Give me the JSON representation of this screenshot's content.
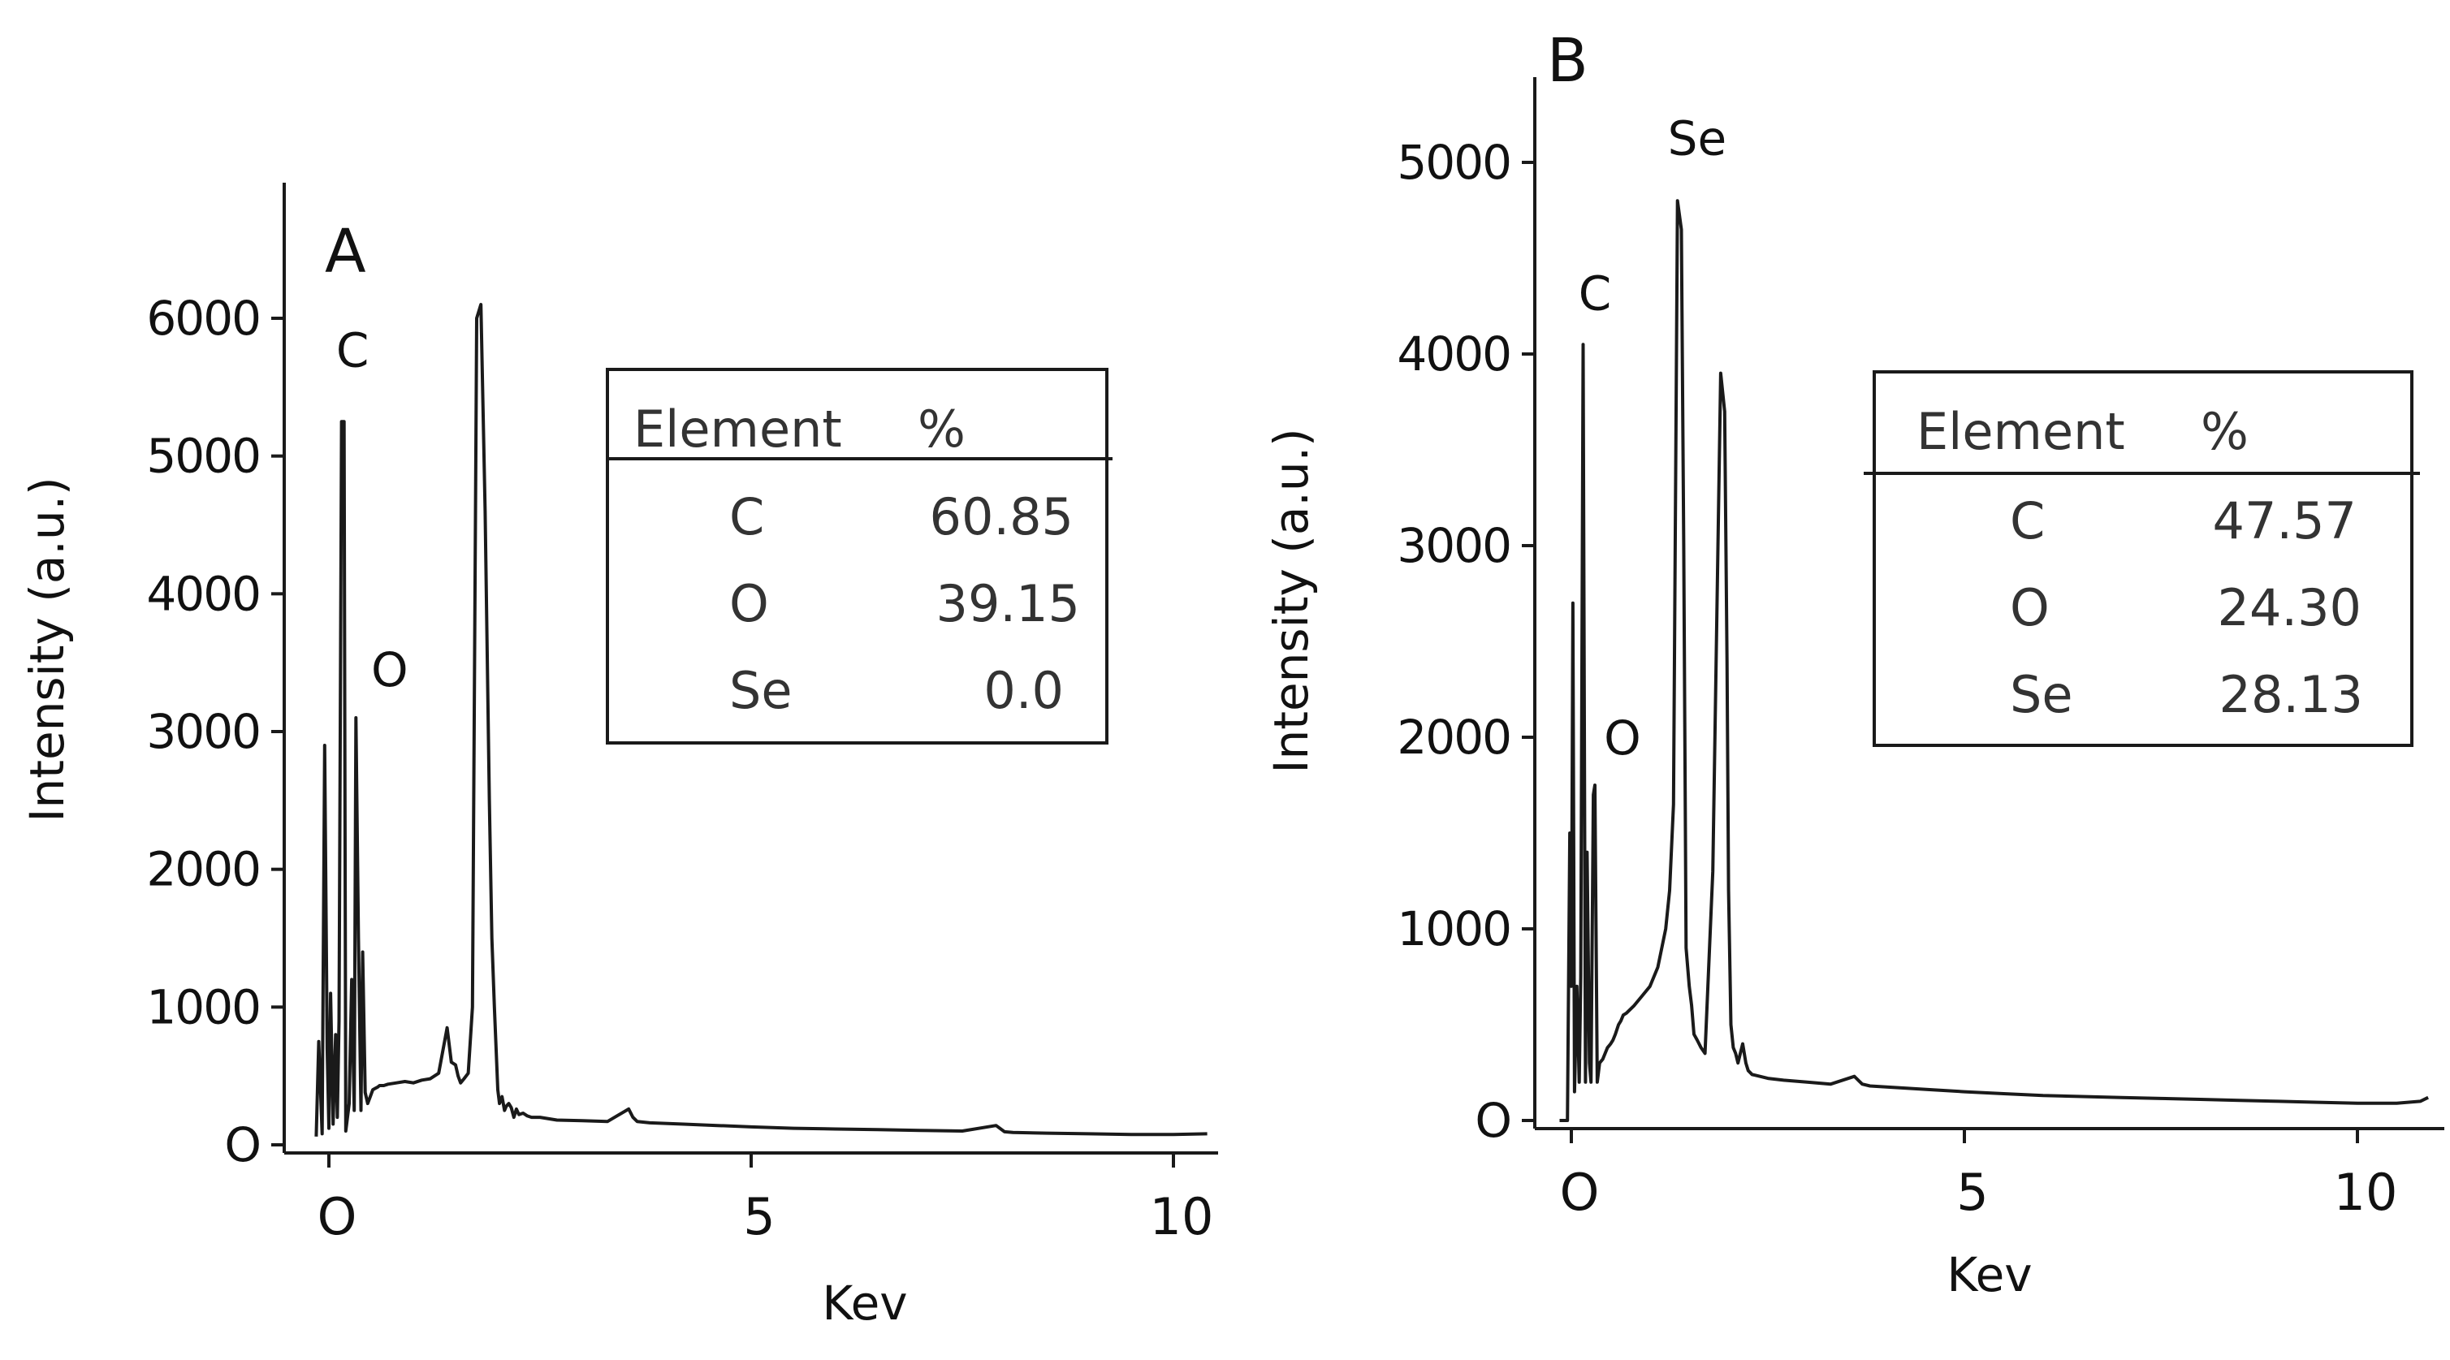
{
  "chart_data": [
    {
      "type": "line",
      "panel_label": "A",
      "xlabel": "Kev",
      "ylabel": "Intensity (a.u.)",
      "xlim": [
        -0.5,
        10.8
      ],
      "ylim": [
        0,
        6800
      ],
      "x_ticks": [
        {
          "value": 0,
          "label": "O"
        },
        {
          "value": 5,
          "label": "5"
        },
        {
          "value": 10,
          "label": "10"
        }
      ],
      "y_ticks": [
        {
          "value": 0,
          "label": "O"
        },
        {
          "value": 1000,
          "label": "1000"
        },
        {
          "value": 2000,
          "label": "2000"
        },
        {
          "value": 3000,
          "label": "3000"
        },
        {
          "value": 4000,
          "label": "4000"
        },
        {
          "value": 5000,
          "label": "5000"
        },
        {
          "value": 6000,
          "label": "6000"
        }
      ],
      "peak_labels": [
        {
          "text": "C",
          "x": 0.28,
          "y": 5650
        },
        {
          "text": "O",
          "x": 0.72,
          "y": 3330
        }
      ],
      "spectrum": {
        "x": [
          -0.15,
          -0.12,
          -0.08,
          -0.05,
          -0.02,
          0.0,
          0.02,
          0.05,
          0.08,
          0.1,
          0.12,
          0.15,
          0.18,
          0.2,
          0.24,
          0.27,
          0.3,
          0.32,
          0.35,
          0.38,
          0.4,
          0.43,
          0.46,
          0.49,
          0.52,
          0.55,
          0.58,
          0.6,
          0.65,
          0.7,
          0.8,
          0.9,
          1.0,
          1.1,
          1.2,
          1.3,
          1.4,
          1.45,
          1.5,
          1.53,
          1.56,
          1.6,
          1.65,
          1.7,
          1.75,
          1.8,
          1.85,
          1.9,
          1.93,
          1.96,
          2.0,
          2.02,
          2.05,
          2.08,
          2.1,
          2.13,
          2.16,
          2.19,
          2.22,
          2.25,
          2.3,
          2.35,
          2.4,
          2.5,
          2.7,
          3.0,
          3.3,
          3.55,
          3.6,
          3.65,
          3.8,
          4.2,
          4.6,
          5.0,
          5.5,
          6.0,
          6.5,
          7.0,
          7.5,
          7.9,
          8.0,
          8.1,
          8.5,
          9.0,
          9.5,
          10.0,
          10.4
        ],
        "y": [
          60,
          750,
          80,
          2900,
          700,
          120,
          1100,
          150,
          800,
          200,
          900,
          5250,
          5250,
          100,
          300,
          1200,
          250,
          3100,
          1500,
          250,
          1400,
          380,
          300,
          350,
          400,
          410,
          420,
          430,
          430,
          440,
          450,
          460,
          450,
          470,
          480,
          520,
          850,
          600,
          580,
          500,
          450,
          480,
          520,
          1000,
          6000,
          6100,
          4600,
          2500,
          1500,
          1000,
          400,
          300,
          350,
          250,
          280,
          300,
          270,
          200,
          260,
          220,
          230,
          210,
          200,
          200,
          180,
          175,
          170,
          260,
          200,
          170,
          160,
          150,
          140,
          130,
          120,
          115,
          110,
          105,
          100,
          140,
          95,
          90,
          85,
          80,
          75,
          75,
          80
        ]
      },
      "table": {
        "headers": [
          "Element",
          "%"
        ],
        "rows": [
          {
            "element": "C",
            "percent": "60.85"
          },
          {
            "element": "O",
            "percent": "39.15"
          },
          {
            "element": "Se",
            "percent": "0.0"
          }
        ]
      }
    },
    {
      "type": "line",
      "panel_label": "B",
      "xlabel": "Kev",
      "ylabel": "Intensity (a.u.)",
      "xlim": [
        -0.3,
        11.0
      ],
      "ylim": [
        0,
        5500
      ],
      "x_ticks": [
        {
          "value": 0,
          "label": "O"
        },
        {
          "value": 5,
          "label": "5"
        },
        {
          "value": 10,
          "label": "10"
        }
      ],
      "y_ticks": [
        {
          "value": 0,
          "label": "O"
        },
        {
          "value": 1000,
          "label": "1000"
        },
        {
          "value": 2000,
          "label": "2000"
        },
        {
          "value": 3000,
          "label": "3000"
        },
        {
          "value": 4000,
          "label": "4000"
        },
        {
          "value": 5000,
          "label": "5000"
        }
      ],
      "peak_labels": [
        {
          "text": "Se",
          "x": 1.6,
          "y": 5040
        },
        {
          "text": "C",
          "x": 0.3,
          "y": 4230
        },
        {
          "text": "O",
          "x": 0.65,
          "y": 1910
        }
      ],
      "spectrum": {
        "x": [
          -0.15,
          -0.05,
          -0.02,
          0.0,
          0.02,
          0.04,
          0.07,
          0.1,
          0.12,
          0.15,
          0.18,
          0.2,
          0.23,
          0.25,
          0.28,
          0.3,
          0.33,
          0.36,
          0.4,
          0.43,
          0.46,
          0.5,
          0.53,
          0.56,
          0.6,
          0.63,
          0.66,
          0.7,
          0.8,
          0.9,
          1.0,
          1.1,
          1.2,
          1.25,
          1.3,
          1.35,
          1.4,
          1.43,
          1.46,
          1.5,
          1.53,
          1.56,
          1.6,
          1.65,
          1.7,
          1.8,
          1.9,
          1.95,
          1.98,
          2.0,
          2.03,
          2.06,
          2.09,
          2.12,
          2.15,
          2.18,
          2.22,
          2.25,
          2.3,
          2.4,
          2.5,
          2.7,
          3.0,
          3.3,
          3.6,
          3.7,
          3.8,
          4.2,
          4.6,
          5.0,
          5.5,
          6.0,
          6.5,
          7.0,
          7.5,
          8.0,
          8.5,
          9.0,
          9.5,
          10.0,
          10.5,
          10.8,
          10.9
        ],
        "y": [
          0,
          0,
          1500,
          700,
          2700,
          150,
          700,
          200,
          750,
          4050,
          200,
          1400,
          300,
          200,
          1700,
          1750,
          200,
          300,
          320,
          350,
          380,
          400,
          420,
          450,
          500,
          520,
          550,
          560,
          600,
          650,
          700,
          800,
          1000,
          1200,
          1650,
          4800,
          4650,
          3000,
          900,
          700,
          600,
          450,
          420,
          380,
          350,
          1300,
          3900,
          3700,
          2400,
          1200,
          500,
          380,
          350,
          300,
          350,
          400,
          300,
          260,
          240,
          230,
          220,
          210,
          200,
          190,
          230,
          190,
          180,
          170,
          160,
          150,
          140,
          130,
          125,
          120,
          115,
          110,
          105,
          100,
          95,
          90,
          90,
          100,
          120
        ]
      },
      "table": {
        "headers": [
          "Element",
          "%"
        ],
        "rows": [
          {
            "element": "C",
            "percent": "47.57"
          },
          {
            "element": "O",
            "percent": "24.30"
          },
          {
            "element": "Se",
            "percent": "28.13"
          }
        ]
      }
    }
  ]
}
